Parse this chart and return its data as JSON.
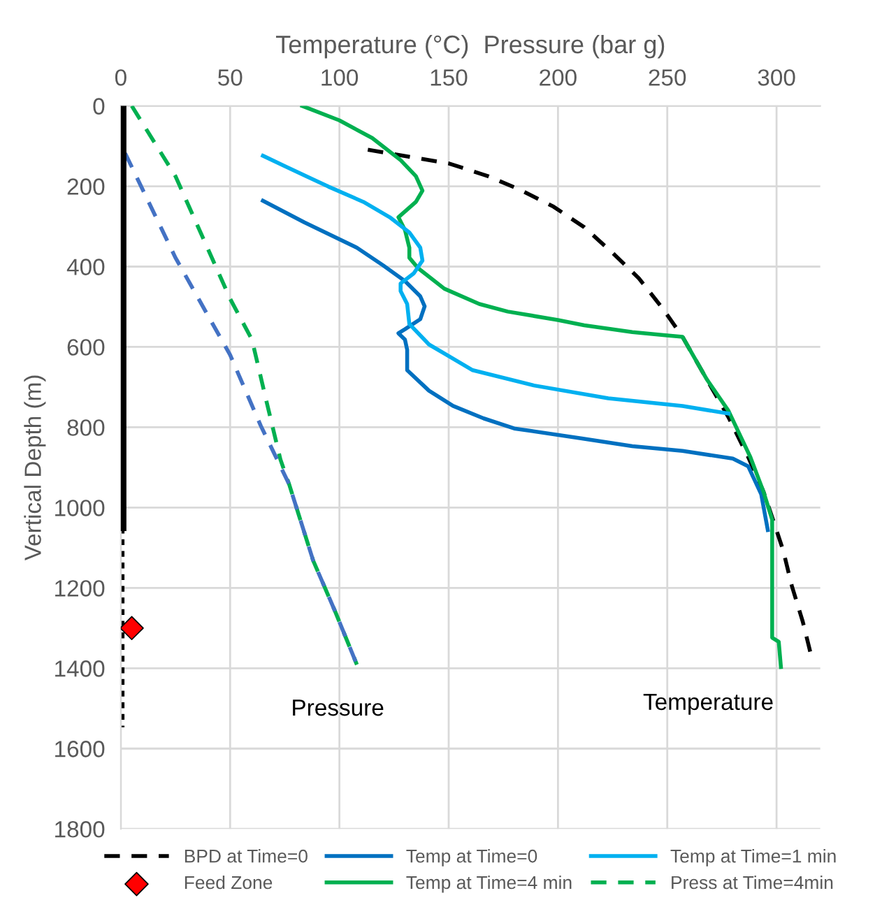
{
  "chart_data": {
    "type": "line",
    "xlabel": "Temperature (°C)  Pressure (bar g)",
    "ylabel": "Vertical Depth (m)",
    "xlim": [
      0,
      320
    ],
    "xticks": [
      0,
      50,
      100,
      150,
      200,
      250,
      300
    ],
    "ylim": [
      1800,
      0
    ],
    "yticks": [
      0,
      200,
      400,
      600,
      800,
      1000,
      1200,
      1400,
      1600,
      1800
    ],
    "grid": true,
    "legend": "bottom",
    "marker": "none",
    "series": [
      {
        "name": "BPD at Time=0",
        "color": "#000000",
        "line_style": "dashed",
        "x": [
          113,
          129,
          150,
          168,
          182,
          198,
          212,
          225,
          237,
          248,
          257,
          268,
          278,
          287,
          294,
          298,
          303,
          307,
          312,
          316
        ],
        "values": [
          109,
          124,
          143,
          175,
          207,
          251,
          302,
          366,
          429,
          505,
          575,
          680,
          775,
          874,
          960,
          1024,
          1106,
          1195,
          1284,
          1372
        ]
      },
      {
        "name": "Feed Zone",
        "type": "scatter",
        "marker": "diamond",
        "color": "#ff0000",
        "x": [
          5
        ],
        "values": [
          1300
        ]
      },
      {
        "name": "Temp at Time=0",
        "color": "#0070c0",
        "line_style": "solid",
        "x": [
          65,
          84,
          108,
          120,
          130,
          137,
          139,
          137,
          130,
          127,
          130,
          131,
          131,
          141,
          152,
          166,
          180,
          211,
          234,
          257,
          280,
          287,
          293,
          296
        ],
        "values": [
          236,
          290,
          353,
          397,
          436,
          474,
          499,
          531,
          556,
          566,
          582,
          607,
          658,
          709,
          747,
          778,
          803,
          828,
          847,
          859,
          878,
          897,
          967,
          1056
        ]
      },
      {
        "name": "Temp at Time=4 min",
        "color": "#00b050",
        "line_style": "solid",
        "x": [
          83,
          100,
          115,
          128,
          135,
          138,
          135,
          127,
          130,
          132,
          132,
          136,
          148,
          164,
          177,
          200,
          212,
          234,
          249,
          257,
          268,
          278,
          288,
          294,
          298,
          298,
          298,
          301,
          302
        ],
        "values": [
          0,
          36,
          80,
          135,
          175,
          211,
          239,
          277,
          309,
          353,
          378,
          404,
          455,
          493,
          512,
          533,
          546,
          563,
          571,
          575,
          680,
          759,
          874,
          960,
          1030,
          1157,
          1324,
          1334,
          1397
        ]
      },
      {
        "name": "Temp at Time=1 min",
        "color": "#00b0f0",
        "line_style": "solid",
        "x": [
          65,
          75,
          95,
          111,
          123,
          132,
          137,
          138,
          134,
          128,
          128,
          131,
          132,
          141,
          161,
          189,
          223,
          257,
          278
        ],
        "values": [
          124,
          150,
          201,
          239,
          277,
          315,
          353,
          385,
          417,
          442,
          461,
          493,
          543,
          594,
          658,
          696,
          728,
          747,
          766
        ]
      },
      {
        "name": "Press at Time=4min",
        "color": "#00b050",
        "line_style": "dashed",
        "x": [
          5,
          25,
          50,
          60,
          66,
          73,
          77,
          88,
          98,
          108
        ],
        "values": [
          0,
          175,
          480,
          582,
          721,
          880,
          942,
          1132,
          1258,
          1391
        ]
      },
      {
        "color": "#4472c4",
        "line_style": "dashed",
        "x": [
          2,
          25,
          50,
          64,
          77,
          88,
          98,
          108
        ],
        "values": [
          118,
          378,
          620,
          796,
          942,
          1132,
          1258,
          1391
        ]
      },
      {
        "color": "#000000",
        "line_style": "solid",
        "x": [
          1,
          1
        ],
        "values": [
          0,
          1050
        ]
      },
      {
        "color": "#000000",
        "line_style": "dotted",
        "x": [
          1,
          1
        ],
        "values": [
          1050,
          1547
        ]
      }
    ],
    "annotations": [
      "Pressure",
      "Temperature"
    ]
  }
}
